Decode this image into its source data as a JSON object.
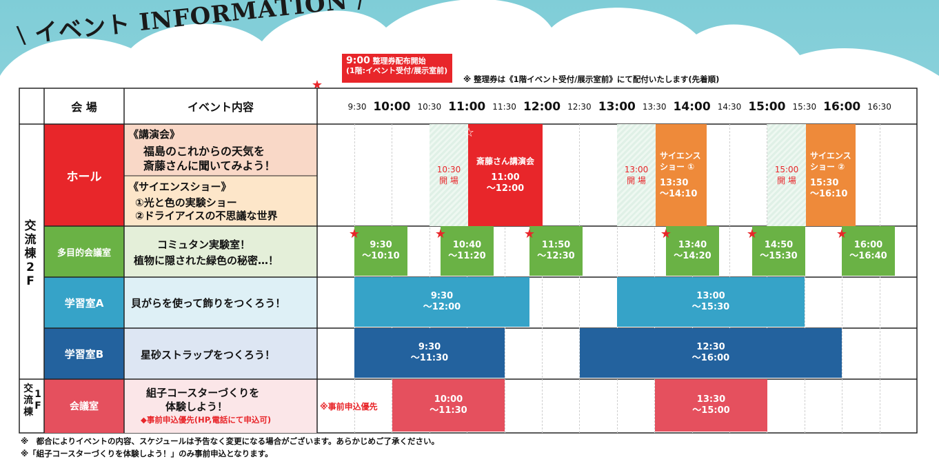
{
  "title": {
    "slash_left": "\\",
    "text": "イベント INFORMATION",
    "slash_right": "/"
  },
  "start": {
    "time": "9:00",
    "label": "整理券配布開始",
    "place": "(1階:イベント受付/展示室前)"
  },
  "top_note": "※ 整理券は《1階イベント受付/展示室前》にて配付いたします(先着順)",
  "header": {
    "venue": "会 場",
    "content": "イベント内容"
  },
  "ticks": [
    "9:30",
    "10:00",
    "10:30",
    "11:00",
    "11:30",
    "12:00",
    "12:30",
    "13:00",
    "13:30",
    "14:00",
    "14:30",
    "15:00",
    "15:30",
    "16:00",
    "16:30"
  ],
  "floors": {
    "f2_a": "交流",
    "f2_b": "棟",
    "f2_c": "2",
    "f2_d": "F",
    "f1_a": "交",
    "f1_b": "流",
    "f1_c": "棟",
    "f1_d": "1",
    "f1_e": "F"
  },
  "colors": {
    "hall": "#e8262a",
    "multi": "#6ab245",
    "roomA": "#36a3c8",
    "roomB": "#23629e",
    "meeting": "#e5505e",
    "orange": "#ee8a3a"
  },
  "rows": {
    "hall": {
      "venue": "ホール",
      "lecture_title": "《講演会》",
      "lecture_l1": "福島のこれからの天気を",
      "lecture_l2": "斎藤さんに聞いてみよう！",
      "show_title": "《サイエンスショー》",
      "show_l1": "①光と色の実験ショー",
      "show_l2": "②ドライアイスの不思議な世界",
      "open1_time": "10:30",
      "open1_label": "開 場",
      "lecture_bar_title": "斎藤さん講演会",
      "lecture_bar_start": "11:00",
      "lecture_bar_end": "～12:00",
      "open2_time": "13:00",
      "open2_label": "開 場",
      "show1_title_a": "サイエンス",
      "show1_title_b": "ショー ①",
      "show1_start": "13:30",
      "show1_end": "～14:10",
      "open3_time": "15:00",
      "open3_label": "開 場",
      "show2_title_a": "サイエンス",
      "show2_title_b": "ショー ②",
      "show2_start": "15:30",
      "show2_end": "～16:10"
    },
    "multi": {
      "venue": "多目的会議室",
      "l1": "コミュタン実験室！",
      "l2": "植物に隠された緑色の秘密…！",
      "slots": [
        {
          "start": "9:30",
          "end": "～10:10"
        },
        {
          "start": "10:40",
          "end": "～11:20"
        },
        {
          "start": "11:50",
          "end": "～12:30"
        },
        {
          "start": "13:40",
          "end": "～14:20"
        },
        {
          "start": "14:50",
          "end": "～15:30"
        },
        {
          "start": "16:00",
          "end": "～16:40"
        }
      ]
    },
    "roomA": {
      "venue": "学習室A",
      "text": "貝がらを使って飾りをつくろう！",
      "s1_start": "9:30",
      "s1_end": "～12:00",
      "s2_start": "13:00",
      "s2_end": "～15:30"
    },
    "roomB": {
      "venue": "学習室B",
      "text": "星砂ストラップをつくろう！",
      "s1_start": "9:30",
      "s1_end": "～11:30",
      "s2_start": "12:30",
      "s2_end": "～16:00"
    },
    "meeting": {
      "venue": "会議室",
      "l1": "組子コースターづくりを",
      "l2": "体験しよう！",
      "l3": "◆事前申込優先(HP,電話にて申込可)",
      "priority": "※事前申込優先",
      "s1_start": "10:00",
      "s1_end": "～11:30",
      "s2_start": "13:30",
      "s2_end": "～15:00"
    }
  },
  "footer": {
    "l1": "※　都合によりイベントの内容、スケジュールは予告なく変更になる場合がございます。あらかじめご了承ください。",
    "l2": "※「組子コースターづくりを体験しよう！」のみ事前申込となります。"
  }
}
